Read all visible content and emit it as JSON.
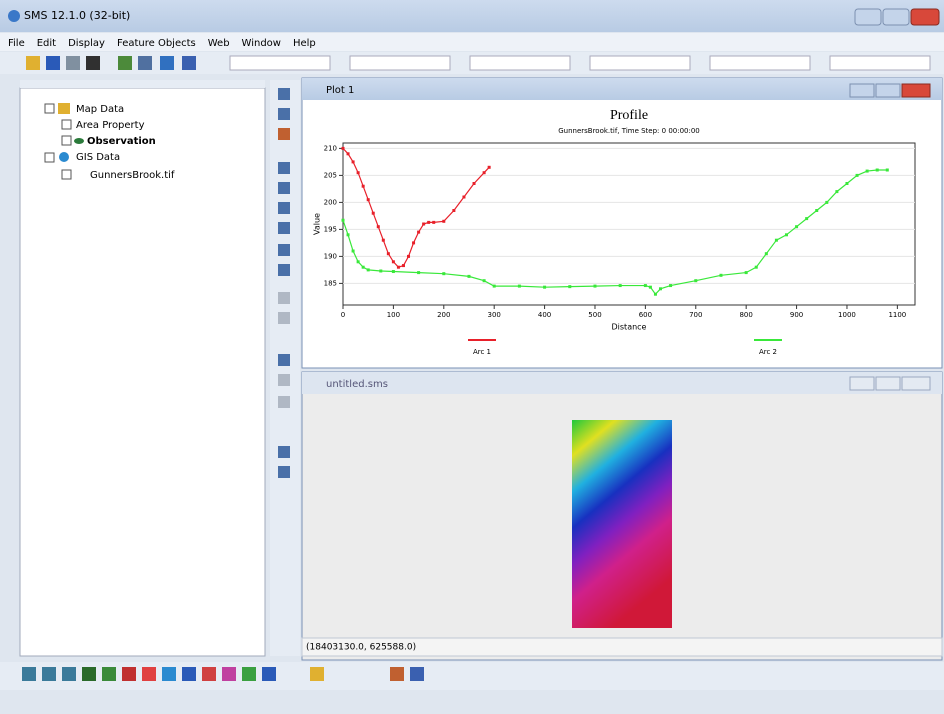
{
  "window": {
    "title": "SMS 12.1.0 (32-bit)"
  },
  "menu": [
    "File",
    "Edit",
    "Display",
    "Feature Objects",
    "Web",
    "Window",
    "Help"
  ],
  "tree": {
    "items": [
      "Map Data",
      "Area Property",
      "Observation",
      "GIS Data",
      "GunnersBrook.tif"
    ]
  },
  "plot_window": {
    "title": "Plot 1"
  },
  "chart_data": {
    "type": "line",
    "title": "Profile",
    "subtitle": "GunnersBrook.tif, Time Step: 0 00:00:00",
    "x_label": "Distance",
    "y_label": "Value",
    "xlim": [
      0,
      1135
    ],
    "ylim": [
      181,
      211
    ],
    "xticks": [
      0,
      100,
      200,
      300,
      400,
      500,
      600,
      700,
      800,
      900,
      1000,
      1100
    ],
    "yticks": [
      185,
      190,
      195,
      200,
      205,
      210
    ],
    "grid": true,
    "series": [
      {
        "name": "Arc 1",
        "color": "#e8202a",
        "x": [
          0,
          10,
          20,
          30,
          40,
          50,
          60,
          70,
          80,
          90,
          100,
          110,
          120,
          130,
          140,
          150,
          160,
          170,
          180,
          200,
          220,
          240,
          260,
          280,
          290
        ],
        "values": [
          210,
          209,
          207.5,
          205.5,
          203,
          200.5,
          198,
          195.5,
          193,
          190.5,
          189,
          188,
          188.3,
          190,
          192.5,
          194.5,
          196,
          196.3,
          196.3,
          196.5,
          198.5,
          201,
          203.5,
          205.5,
          206.5
        ]
      },
      {
        "name": "Arc 2",
        "color": "#39e83a",
        "x": [
          0,
          10,
          20,
          30,
          40,
          50,
          75,
          100,
          150,
          200,
          250,
          280,
          300,
          350,
          400,
          450,
          500,
          550,
          600,
          610,
          620,
          630,
          650,
          700,
          750,
          800,
          820,
          840,
          860,
          880,
          900,
          920,
          940,
          960,
          980,
          1000,
          1020,
          1040,
          1060,
          1080
        ],
        "values": [
          196.7,
          194,
          191,
          189,
          188,
          187.5,
          187.3,
          187.2,
          187,
          186.8,
          186.3,
          185.5,
          184.5,
          184.5,
          184.3,
          184.4,
          184.5,
          184.6,
          184.6,
          184.3,
          183,
          184,
          184.6,
          185.5,
          186.5,
          187,
          188,
          190.5,
          193,
          194,
          195.5,
          197,
          198.5,
          200,
          202,
          203.5,
          205,
          205.8,
          206,
          206
        ]
      }
    ]
  },
  "map_window": {
    "title": "untitled.sms",
    "status": "(18403130.0, 625588.0)"
  }
}
